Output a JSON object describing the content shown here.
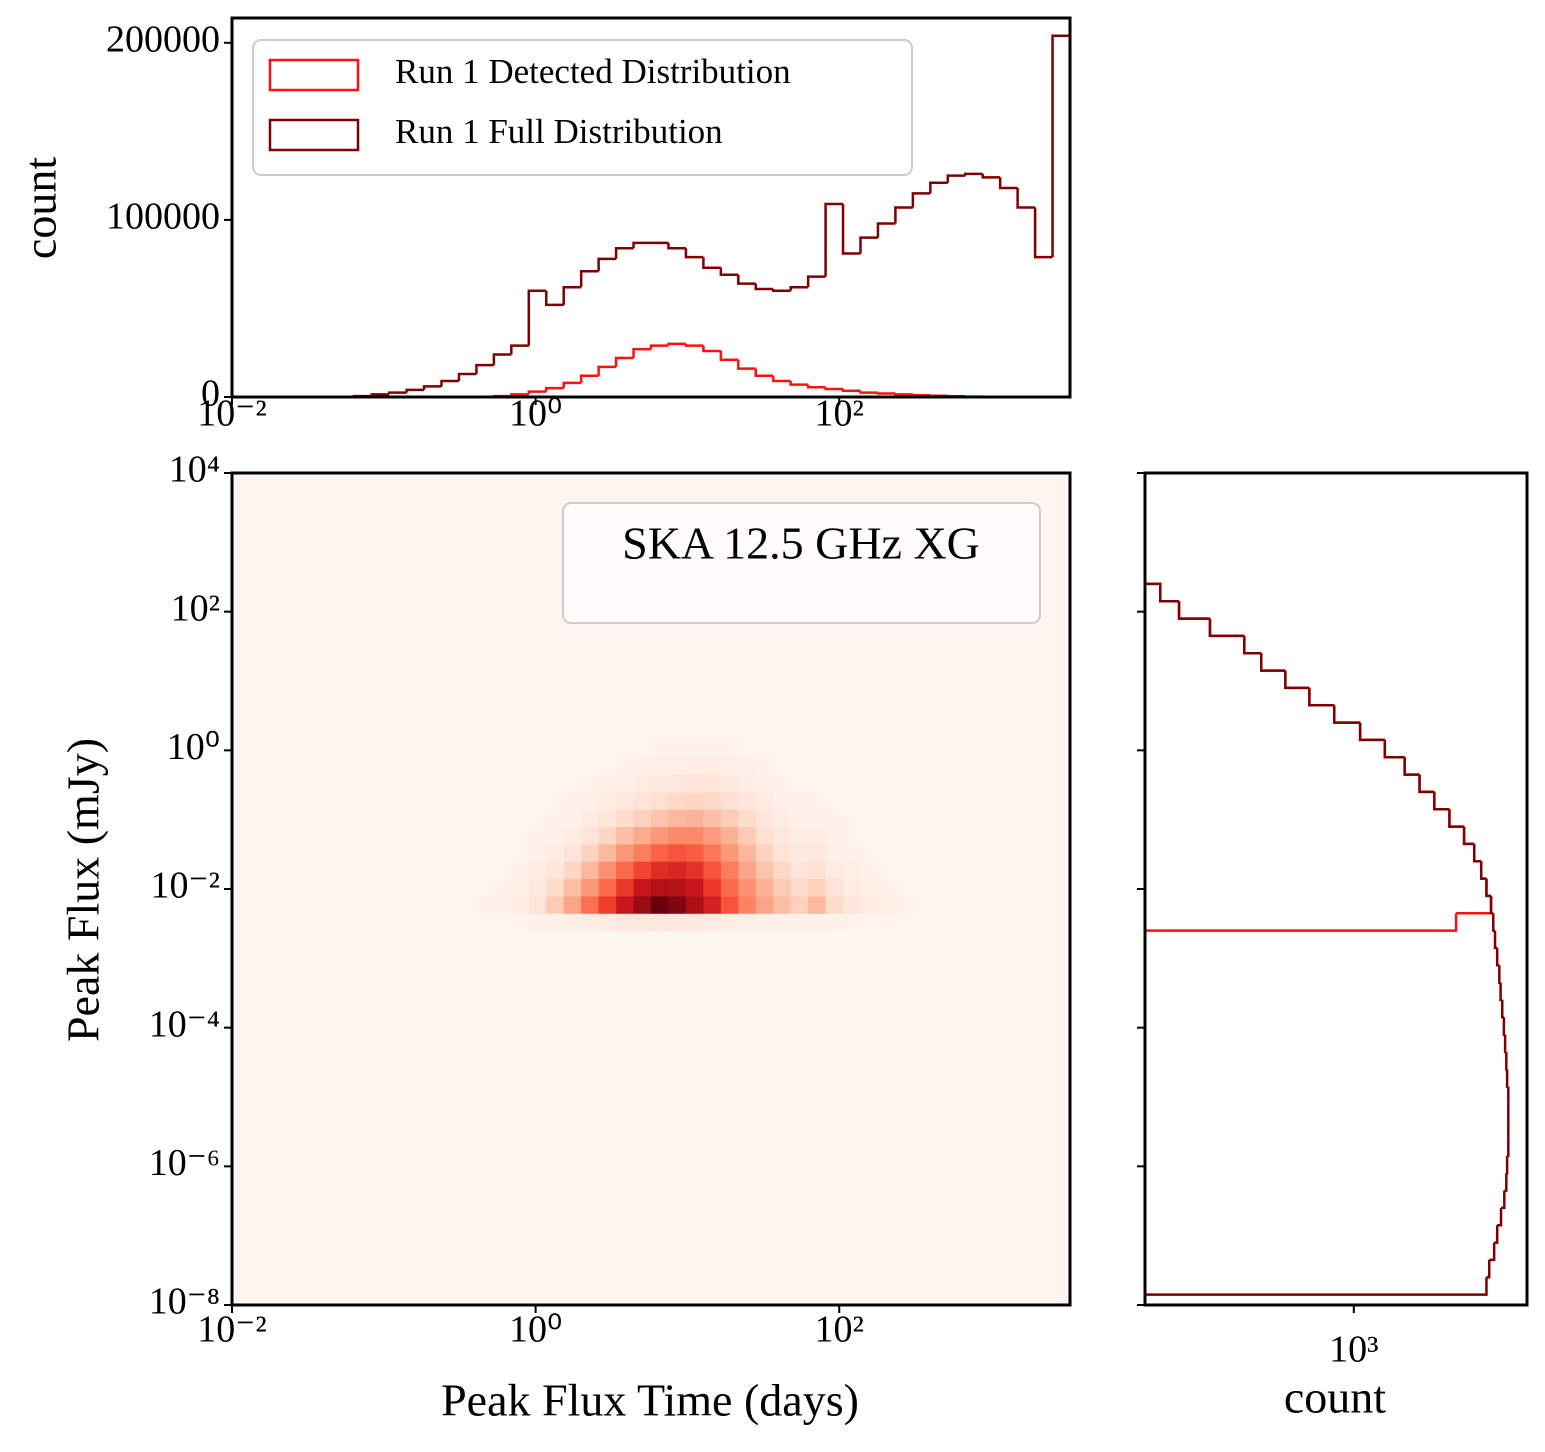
{
  "chart_data": [
    {
      "type": "histogram",
      "ylabel": "count",
      "log_x": true,
      "legend": "upper left",
      "bins": [
        0.01,
        0.01303,
        0.01698,
        0.02213,
        0.02884,
        0.03758,
        0.04898,
        0.06383,
        0.08318,
        0.1084,
        0.1413,
        0.1841,
        0.2399,
        0.3126,
        0.4074,
        0.5309,
        0.6918,
        0.9016,
        1.175,
        1.531,
        1.995,
        2.6,
        3.388,
        4.416,
        5.754,
        7.499,
        9.772,
        12.74,
        16.6,
        21.63,
        28.18,
        36.73,
        47.86,
        62.37,
        81.28,
        105.9,
        138,
        179.9,
        234.4,
        305.5,
        398.1,
        518.8,
        676.1,
        881,
        1148,
        1496,
        1950,
        2541,
        3311
      ],
      "series": [
        {
          "name": "Run 1 Detected Distribution",
          "color": "#ff1010",
          "values": [
            0,
            0,
            0,
            0,
            0,
            0,
            0,
            0,
            0,
            0,
            0,
            0,
            0,
            0,
            0,
            500,
            1500,
            3000,
            5000,
            8000,
            12000,
            17000,
            22000,
            27000,
            29000,
            30000,
            29000,
            26000,
            21000,
            16000,
            12000,
            9000,
            7000,
            5500,
            4500,
            3500,
            2500,
            2000,
            1500,
            1000,
            700,
            400,
            200,
            0,
            0,
            0,
            0,
            0
          ]
        },
        {
          "name": "Run 1 Full Distribution",
          "color": "#7f0000",
          "values": [
            0,
            0,
            0,
            0,
            0,
            0,
            0,
            500,
            1500,
            2500,
            4000,
            6000,
            9000,
            13000,
            18000,
            24000,
            29000,
            60000,
            52000,
            62000,
            71000,
            78000,
            84000,
            87000,
            87000,
            84000,
            79000,
            73000,
            69000,
            64000,
            61000,
            60000,
            62000,
            68000,
            109000,
            81000,
            90000,
            98000,
            107000,
            115000,
            121000,
            125000,
            126000,
            124000,
            118000,
            107000,
            79000,
            204000
          ]
        }
      ],
      "xlim": [
        0.01,
        3311
      ],
      "xticks": [
        {
          "value": 0.01,
          "label": "10⁻²"
        },
        {
          "value": 1,
          "label": "10⁰"
        },
        {
          "value": 100,
          "label": "10²"
        }
      ],
      "ylim": [
        0,
        214000
      ],
      "yticks": [
        0,
        100000,
        200000
      ]
    },
    {
      "type": "heatmap",
      "annotation": "SKA 12.5 GHz XG",
      "xlabel": "Peak Flux Time (days)",
      "ylabel": "Peak Flux (mJy)",
      "log_x": true,
      "log_y": true,
      "colormap": [
        "#fff5f0",
        "#fee0d2",
        "#fcbba1",
        "#fc9272",
        "#fb6a4a",
        "#ef3b2c",
        "#cb181d",
        "#a50f15",
        "#67000d"
      ],
      "xbins": [
        0.2399,
        0.3126,
        0.4074,
        0.5309,
        0.6918,
        0.9016,
        1.175,
        1.531,
        1.995,
        2.6,
        3.388,
        4.416,
        5.754,
        7.499,
        9.772,
        12.74,
        16.6,
        21.63,
        28.18,
        36.73,
        47.86,
        62.37,
        81.28,
        105.9,
        138,
        179.9,
        234.4,
        305.5,
        398.1,
        518.8
      ],
      "ybins": [
        0.002512,
        0.004467,
        0.007943,
        0.01413,
        0.02512,
        0.04467,
        0.07943,
        0.1413,
        0.2512,
        0.4467,
        0.7943,
        1.413,
        2.512
      ],
      "z": [
        [
          0,
          0,
          1,
          1,
          1,
          2,
          3,
          4,
          5,
          6,
          7,
          8,
          8,
          8,
          7,
          6,
          5,
          4,
          3,
          3,
          2,
          2,
          2,
          1,
          1,
          1,
          1,
          0,
          0
        ],
        [
          1,
          1,
          2,
          3,
          5,
          10,
          20,
          32,
          48,
          62,
          76,
          90,
          100,
          95,
          86,
          72,
          56,
          42,
          32,
          24,
          18,
          26,
          14,
          9,
          6,
          4,
          2,
          1,
          1
        ],
        [
          0,
          1,
          1,
          2,
          4,
          7,
          14,
          24,
          36,
          50,
          64,
          76,
          84,
          82,
          76,
          64,
          50,
          38,
          28,
          20,
          14,
          18,
          10,
          6,
          4,
          2,
          1,
          1,
          0
        ],
        [
          0,
          0,
          1,
          1,
          2,
          5,
          9,
          16,
          26,
          38,
          50,
          60,
          68,
          70,
          66,
          56,
          44,
          32,
          22,
          15,
          10,
          12,
          6,
          4,
          2,
          1,
          1,
          0,
          0
        ],
        [
          0,
          0,
          0,
          1,
          1,
          3,
          6,
          10,
          17,
          26,
          36,
          44,
          52,
          56,
          54,
          46,
          36,
          26,
          17,
          11,
          7,
          8,
          4,
          2,
          1,
          1,
          0,
          0,
          0
        ],
        [
          0,
          0,
          0,
          0,
          1,
          2,
          3,
          6,
          10,
          16,
          24,
          30,
          36,
          40,
          40,
          35,
          28,
          20,
          13,
          8,
          5,
          5,
          3,
          1,
          1,
          0,
          0,
          0,
          0
        ],
        [
          0,
          0,
          0,
          0,
          0,
          1,
          2,
          3,
          6,
          9,
          14,
          18,
          22,
          26,
          27,
          24,
          19,
          14,
          9,
          5,
          3,
          3,
          2,
          1,
          0,
          0,
          0,
          0,
          0
        ],
        [
          0,
          0,
          0,
          0,
          0,
          1,
          1,
          2,
          3,
          5,
          8,
          10,
          13,
          15,
          16,
          15,
          12,
          9,
          6,
          3,
          2,
          2,
          1,
          0,
          0,
          0,
          0,
          0,
          0
        ],
        [
          0,
          0,
          0,
          0,
          0,
          0,
          1,
          1,
          2,
          3,
          4,
          6,
          7,
          8,
          9,
          9,
          7,
          5,
          3,
          2,
          1,
          1,
          0,
          0,
          0,
          0,
          0,
          0,
          0
        ],
        [
          0,
          0,
          0,
          0,
          0,
          0,
          0,
          1,
          1,
          1,
          2,
          3,
          4,
          4,
          5,
          5,
          4,
          3,
          2,
          1,
          1,
          0,
          0,
          0,
          0,
          0,
          0,
          0,
          0
        ],
        [
          0,
          0,
          0,
          0,
          0,
          0,
          0,
          0,
          1,
          1,
          1,
          1,
          2,
          2,
          2,
          2,
          2,
          1,
          1,
          1,
          0,
          0,
          0,
          0,
          0,
          0,
          0,
          0,
          0
        ],
        [
          0,
          0,
          0,
          0,
          0,
          0,
          0,
          0,
          0,
          0,
          1,
          1,
          1,
          1,
          1,
          1,
          1,
          1,
          0,
          0,
          0,
          0,
          0,
          0,
          0,
          0,
          0,
          0,
          0
        ]
      ],
      "xlim": [
        0.01,
        3311
      ],
      "ylim": [
        1e-08,
        10000
      ],
      "xticks": [
        {
          "value": 0.01,
          "label": "10⁻²"
        },
        {
          "value": 1,
          "label": "10⁰"
        },
        {
          "value": 100,
          "label": "10²"
        }
      ],
      "yticks": [
        {
          "value": 1e-08,
          "label": "10⁻⁸"
        },
        {
          "value": 1e-06,
          "label": "10⁻⁶"
        },
        {
          "value": 0.0001,
          "label": "10⁻⁴"
        },
        {
          "value": 0.01,
          "label": "10⁻²"
        },
        {
          "value": 1,
          "label": "10⁰"
        },
        {
          "value": 100,
          "label": "10²"
        },
        {
          "value": 10000,
          "label": "10⁴"
        }
      ]
    },
    {
      "type": "histogram",
      "orientation": "horizontal",
      "xlabel": "count",
      "log_x": true,
      "log_y": true,
      "bins": [
        1.413e-08,
        2.512e-08,
        4.467e-08,
        7.943e-08,
        1.413e-07,
        2.512e-07,
        4.467e-07,
        7.943e-07,
        1.413e-06,
        2.512e-06,
        4.467e-06,
        7.943e-06,
        1.413e-05,
        2.512e-05,
        4.467e-05,
        7.943e-05,
        0.0001413,
        0.0002512,
        0.0004467,
        0.0007943,
        0.001413,
        0.002512,
        0.004467,
        0.007943,
        0.01413,
        0.02512,
        0.04467,
        0.07943,
        0.1413,
        0.2512,
        0.4467,
        0.7943,
        1.413,
        2.512,
        4.467,
        7.943,
        14.13,
        25.12,
        44.67,
        79.43,
        141.3,
        251.2
      ],
      "series": [
        {
          "color": "#ff1010",
          "values": [
            0,
            0,
            0,
            0,
            0,
            0,
            0,
            0,
            0,
            0,
            0,
            0,
            0,
            0,
            0,
            0,
            0,
            0,
            0,
            0,
            0,
            2200,
            2880,
            2780,
            2670,
            2530,
            2340,
            2090,
            1860,
            1660,
            1480,
            1270,
            1050,
            860,
            710,
            590,
            490,
            430,
            330,
            260,
            225
          ]
        },
        {
          "color": "#7f0000",
          "values": [
            2780,
            2840,
            2950,
            3020,
            3110,
            3190,
            3240,
            3260,
            3290,
            3290,
            3290,
            3290,
            3260,
            3240,
            3210,
            3180,
            3140,
            3100,
            3070,
            3020,
            2970,
            2930,
            2880,
            2780,
            2670,
            2530,
            2340,
            2090,
            1860,
            1660,
            1480,
            1270,
            1050,
            860,
            710,
            590,
            490,
            430,
            330,
            260,
            225
          ]
        }
      ],
      "xlim": [
        200,
        3800
      ],
      "ylim": [
        1e-08,
        10000
      ],
      "xticks": [
        {
          "value": 1000,
          "label": "10³"
        }
      ]
    }
  ]
}
